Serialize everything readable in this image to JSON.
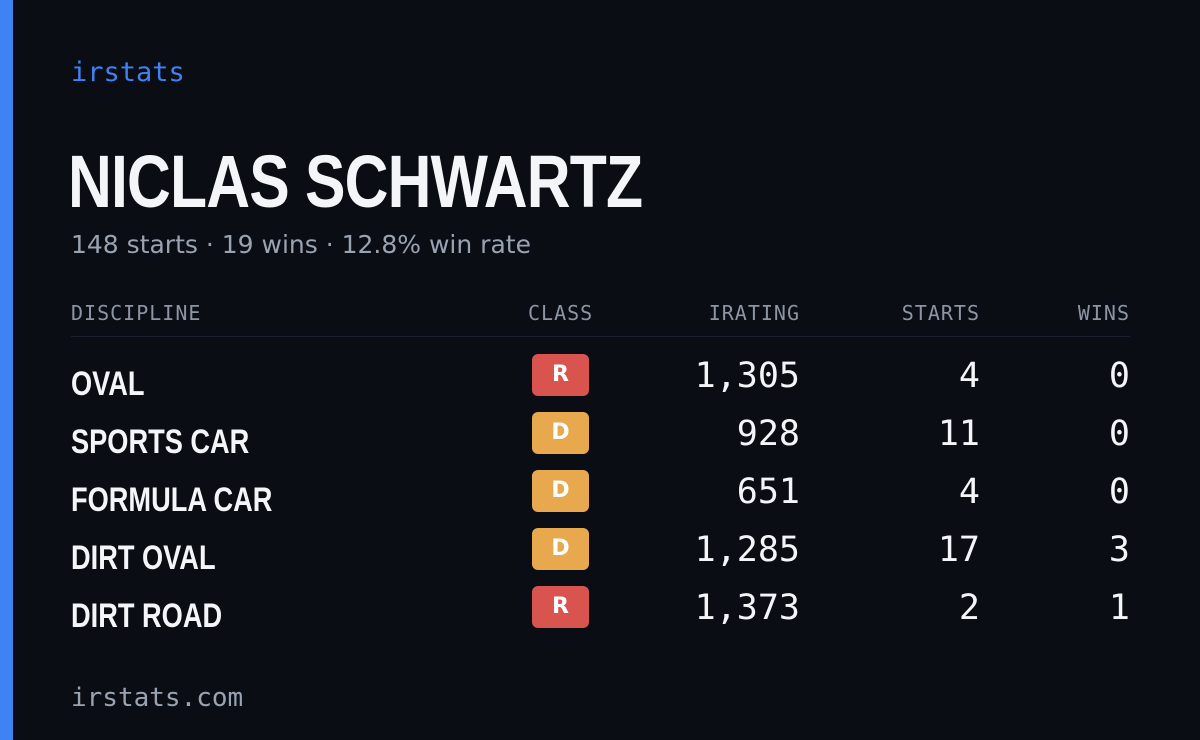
{
  "brand": "irstats",
  "driver": {
    "name": "NICLAS SCHWARTZ",
    "summary": "148 starts · 19 wins · 12.8% win rate"
  },
  "table": {
    "headers": {
      "discipline": "DISCIPLINE",
      "class": "CLASS",
      "irating": "IRATING",
      "starts": "STARTS",
      "wins": "WINS"
    },
    "rows": [
      {
        "discipline": "OVAL",
        "class": "R",
        "irating": "1,305",
        "starts": "4",
        "wins": "0"
      },
      {
        "discipline": "SPORTS CAR",
        "class": "D",
        "irating": "928",
        "starts": "11",
        "wins": "0"
      },
      {
        "discipline": "FORMULA CAR",
        "class": "D",
        "irating": "651",
        "starts": "4",
        "wins": "0"
      },
      {
        "discipline": "DIRT OVAL",
        "class": "D",
        "irating": "1,285",
        "starts": "17",
        "wins": "3"
      },
      {
        "discipline": "DIRT ROAD",
        "class": "R",
        "irating": "1,373",
        "starts": "2",
        "wins": "1"
      }
    ]
  },
  "footer": "irstats.com",
  "colors": {
    "background": "#0a0d14",
    "accent": "#3f82f4",
    "class_r": "#d9534f",
    "class_d": "#e8a94e"
  }
}
